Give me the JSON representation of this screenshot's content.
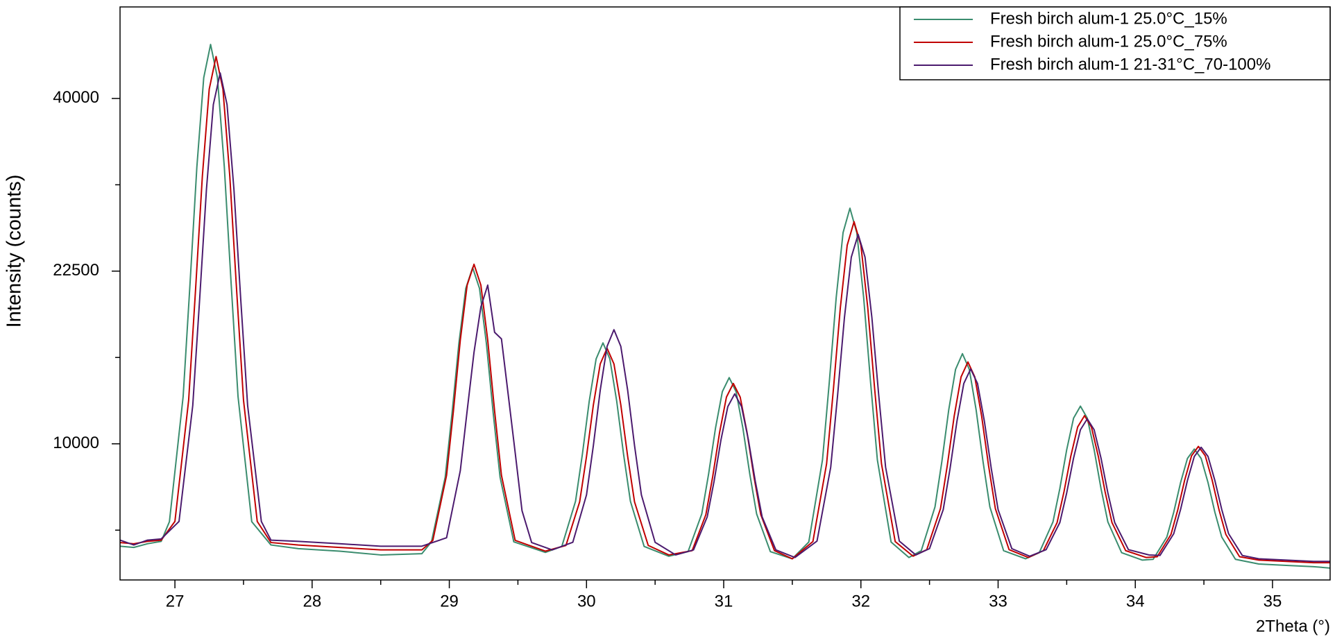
{
  "chart_data": {
    "type": "line",
    "xlabel": "2Theta (°)",
    "ylabel": "Intensity (counts)",
    "yscale": "sqrt",
    "xlim": [
      26.6,
      35.42
    ],
    "ylim": [
      3670,
      51300
    ],
    "xticks": [
      27,
      28,
      29,
      30,
      31,
      32,
      33,
      34,
      35
    ],
    "xminorticks": [
      27.5,
      28.5,
      29.5,
      30.5,
      31.5,
      32.5,
      33.5,
      34.5
    ],
    "yticks": [
      10000,
      22500,
      40000
    ],
    "yminorticks": [
      5625,
      15625,
      30625
    ],
    "legend": "upper right",
    "series": [
      {
        "name": "Fresh birch alum-1 25.0°C_15%",
        "color": "#3a8c6e",
        "x": [
          26.6,
          26.7,
          26.8,
          26.9,
          26.96,
          27.06,
          27.11,
          27.16,
          27.21,
          27.26,
          27.31,
          27.36,
          27.41,
          27.46,
          27.56,
          27.7,
          27.9,
          28.2,
          28.5,
          28.8,
          28.87,
          28.97,
          29.02,
          29.07,
          29.12,
          29.17,
          29.22,
          29.27,
          29.32,
          29.37,
          29.47,
          29.7,
          29.82,
          29.92,
          29.97,
          30.02,
          30.07,
          30.12,
          30.17,
          30.22,
          30.27,
          30.32,
          30.42,
          30.6,
          30.74,
          30.84,
          30.89,
          30.94,
          30.99,
          31.04,
          31.09,
          31.14,
          31.19,
          31.24,
          31.34,
          31.5,
          31.62,
          31.72,
          31.77,
          31.82,
          31.87,
          31.92,
          31.97,
          32.02,
          32.07,
          32.12,
          32.22,
          32.35,
          32.44,
          32.54,
          32.59,
          32.64,
          32.69,
          32.74,
          32.79,
          32.84,
          32.89,
          32.94,
          33.04,
          33.2,
          33.3,
          33.4,
          33.45,
          33.5,
          33.55,
          33.6,
          33.65,
          33.7,
          33.75,
          33.8,
          33.9,
          34.05,
          34.13,
          34.23,
          34.28,
          34.33,
          34.38,
          34.43,
          34.48,
          34.53,
          34.58,
          34.63,
          34.73,
          34.9,
          35.1,
          35.3,
          35.42
        ],
        "values": [
          4950,
          4900,
          5050,
          5150,
          6000,
          12930,
          21390,
          32470,
          42430,
          46500,
          42430,
          32470,
          21390,
          12930,
          6000,
          5000,
          4850,
          4750,
          4600,
          4650,
          5130,
          8160,
          11850,
          16680,
          21030,
          22800,
          21030,
          16680,
          11850,
          8160,
          5130,
          4700,
          4940,
          6950,
          9410,
          12630,
          15520,
          16700,
          15520,
          12630,
          9410,
          6950,
          4940,
          4550,
          4730,
          6350,
          8330,
          10920,
          13250,
          14200,
          13250,
          10920,
          8330,
          6350,
          4730,
          4450,
          5120,
          9090,
          13930,
          20270,
          25970,
          28300,
          25970,
          20270,
          13930,
          9090,
          5120,
          4500,
          4770,
          6680,
          9000,
          12050,
          14780,
          15900,
          14780,
          12050,
          9000,
          6680,
          4770,
          4450,
          4690,
          5990,
          7580,
          9660,
          11540,
          12300,
          11540,
          9660,
          7580,
          5990,
          4690,
          4400,
          4430,
          5330,
          6430,
          7880,
          9170,
          9700,
          9170,
          7880,
          6430,
          5330,
          4430,
          4250,
          4200,
          4150,
          4100
        ]
      },
      {
        "name": "Fresh birch alum-1 25.0°C_75%",
        "color": "#c00000",
        "x": [
          26.6,
          26.7,
          26.8,
          26.9,
          27.0,
          27.1,
          27.15,
          27.2,
          27.25,
          27.3,
          27.35,
          27.4,
          27.45,
          27.5,
          27.6,
          27.7,
          27.9,
          28.2,
          28.5,
          28.8,
          28.88,
          28.98,
          29.03,
          29.08,
          29.13,
          29.18,
          29.23,
          29.28,
          29.33,
          29.38,
          29.48,
          29.7,
          29.85,
          29.95,
          30.0,
          30.05,
          30.1,
          30.15,
          30.2,
          30.25,
          30.3,
          30.35,
          30.45,
          30.6,
          30.77,
          30.87,
          30.92,
          30.97,
          31.02,
          31.07,
          31.12,
          31.17,
          31.22,
          31.27,
          31.37,
          31.5,
          31.65,
          31.75,
          31.8,
          31.85,
          31.9,
          31.95,
          32.0,
          32.05,
          32.1,
          32.15,
          32.25,
          32.38,
          32.48,
          32.58,
          32.63,
          32.68,
          32.73,
          32.78,
          32.83,
          32.88,
          32.93,
          32.98,
          33.08,
          33.22,
          33.33,
          33.43,
          33.48,
          33.53,
          33.58,
          33.63,
          33.68,
          33.73,
          33.78,
          33.83,
          33.93,
          34.08,
          34.16,
          34.26,
          34.31,
          34.36,
          34.41,
          34.46,
          34.51,
          34.56,
          34.61,
          34.66,
          34.76,
          34.9,
          35.1,
          35.3,
          35.42
        ],
        "values": [
          5100,
          5050,
          5150,
          5200,
          6010,
          12680,
          20830,
          31500,
          41080,
          45000,
          41080,
          31500,
          20830,
          12680,
          6010,
          5100,
          5000,
          4900,
          4800,
          4800,
          5190,
          8260,
          12000,
          16900,
          21300,
          23100,
          21300,
          16900,
          12000,
          8260,
          5190,
          4750,
          4980,
          6920,
          9280,
          12380,
          15160,
          16300,
          15160,
          12380,
          9280,
          6920,
          4980,
          4600,
          4770,
          6320,
          8200,
          10670,
          12890,
          13800,
          12890,
          10670,
          8200,
          6320,
          4770,
          4450,
          5140,
          8880,
          13450,
          19430,
          24800,
          27000,
          24800,
          19430,
          13450,
          8880,
          5140,
          4550,
          4810,
          6600,
          8800,
          11670,
          14250,
          15300,
          14250,
          11670,
          8800,
          6600,
          4810,
          4500,
          4770,
          5960,
          7410,
          9300,
          11000,
          11700,
          11000,
          9300,
          7410,
          5960,
          4770,
          4500,
          4530,
          5440,
          6550,
          8010,
          9320,
          9850,
          9320,
          8010,
          6550,
          5440,
          4530,
          4400,
          4350,
          4300,
          4300
        ]
      },
      {
        "name": "Fresh birch alum-1 21-31°C_70-100%",
        "color": "#4b1a6e",
        "x": [
          26.6,
          26.7,
          26.8,
          26.9,
          27.03,
          27.13,
          27.18,
          27.23,
          27.28,
          27.33,
          27.38,
          27.43,
          27.48,
          27.53,
          27.63,
          27.7,
          27.9,
          28.2,
          28.5,
          28.8,
          28.98,
          29.08,
          29.13,
          29.18,
          29.23,
          29.28,
          29.33,
          29.38,
          29.43,
          29.48,
          29.53,
          29.6,
          29.75,
          29.9,
          30.0,
          30.05,
          30.1,
          30.15,
          30.2,
          30.25,
          30.3,
          30.35,
          30.4,
          30.5,
          30.65,
          30.78,
          30.88,
          30.93,
          30.98,
          31.03,
          31.08,
          31.13,
          31.18,
          31.23,
          31.28,
          31.38,
          31.52,
          31.68,
          31.78,
          31.83,
          31.88,
          31.93,
          31.98,
          32.03,
          32.08,
          32.13,
          32.18,
          32.28,
          32.4,
          32.5,
          32.6,
          32.65,
          32.7,
          32.75,
          32.8,
          32.85,
          32.9,
          32.95,
          33.0,
          33.1,
          33.23,
          33.35,
          33.45,
          33.5,
          33.55,
          33.6,
          33.65,
          33.7,
          33.75,
          33.8,
          33.85,
          33.95,
          34.1,
          34.18,
          34.28,
          34.33,
          34.38,
          34.43,
          34.48,
          34.53,
          34.58,
          34.63,
          34.68,
          34.78,
          34.9,
          35.1,
          35.3,
          35.42
        ],
        "values": [
          5200,
          5000,
          5200,
          5250,
          6010,
          12340,
          20070,
          30190,
          39290,
          43000,
          39290,
          30190,
          20070,
          12340,
          6010,
          5200,
          5150,
          5050,
          4950,
          4950,
          5300,
          8500,
          12000,
          16000,
          19500,
          21300,
          17500,
          17000,
          13000,
          9500,
          6500,
          5100,
          4800,
          5110,
          7260,
          9900,
          13340,
          16440,
          17700,
          16440,
          13340,
          9900,
          7260,
          5110,
          4600,
          4800,
          6220,
          7960,
          10230,
          12270,
          13100,
          12270,
          10230,
          7960,
          6220,
          4800,
          4500,
          5160,
          8690,
          13000,
          18650,
          23730,
          25800,
          23730,
          18650,
          13000,
          8690,
          5160,
          4600,
          4850,
          6550,
          8630,
          11350,
          13800,
          14800,
          13800,
          11350,
          8630,
          6550,
          4850,
          4550,
          4810,
          5960,
          7360,
          9190,
          10830,
          11500,
          10830,
          9190,
          7360,
          5960,
          4810,
          4600,
          4580,
          5470,
          6560,
          7990,
          9280,
          9800,
          9280,
          7990,
          6560,
          5470,
          4580,
          4450,
          4400,
          4350,
          4350
        ]
      }
    ]
  }
}
